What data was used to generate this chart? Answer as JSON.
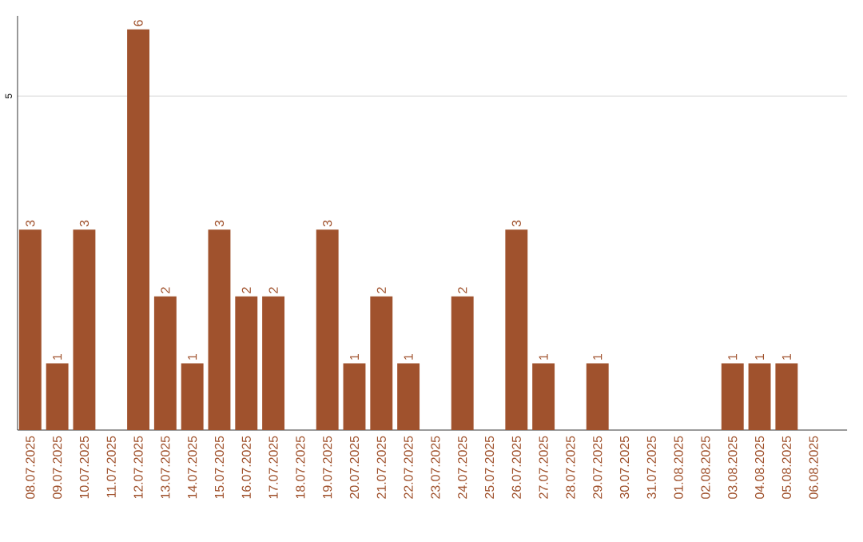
{
  "chart_data": {
    "type": "bar",
    "categories": [
      "08.07.2025",
      "09.07.2025",
      "10.07.2025",
      "11.07.2025",
      "12.07.2025",
      "13.07.2025",
      "14.07.2025",
      "15.07.2025",
      "16.07.2025",
      "17.07.2025",
      "18.07.2025",
      "19.07.2025",
      "20.07.2025",
      "21.07.2025",
      "22.07.2025",
      "23.07.2025",
      "24.07.2025",
      "25.07.2025",
      "26.07.2025",
      "27.07.2025",
      "28.07.2025",
      "29.07.2025",
      "30.07.2025",
      "31.07.2025",
      "01.08.2025",
      "02.08.2025",
      "03.08.2025",
      "04.08.2025",
      "05.08.2025",
      "06.08.2025"
    ],
    "values": [
      3,
      1,
      3,
      0,
      6,
      2,
      1,
      3,
      2,
      2,
      0,
      3,
      1,
      2,
      1,
      0,
      2,
      0,
      3,
      1,
      0,
      1,
      0,
      0,
      0,
      0,
      1,
      1,
      1,
      0
    ],
    "value_labels": [
      "3",
      "1",
      "3",
      null,
      "6",
      "2",
      "1",
      "3",
      "2",
      "2",
      null,
      "3",
      "1",
      "2",
      "1",
      null,
      "2",
      null,
      "3",
      "1",
      null,
      "1",
      null,
      null,
      null,
      null,
      "1",
      "1",
      "1",
      null
    ],
    "color": "#a0522d",
    "ylim": [
      0,
      6.2
    ],
    "yticks": [
      5
    ],
    "grid": "y"
  }
}
